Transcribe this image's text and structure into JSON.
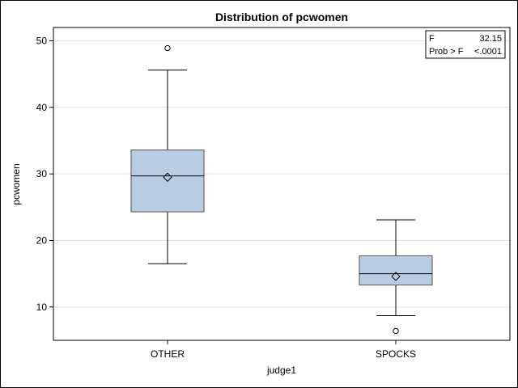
{
  "chart_data": {
    "type": "box",
    "title": "Distribution of pcwomen",
    "xlabel": "judge1",
    "ylabel": "pcwomen",
    "ylim": [
      5,
      52
    ],
    "yticks": [
      10,
      20,
      30,
      40,
      50
    ],
    "grid": true,
    "categories": [
      "OTHER",
      "SPOCKS"
    ],
    "boxes": [
      {
        "category": "OTHER",
        "whisker_low": 16.5,
        "q1": 24.3,
        "median": 29.7,
        "q3": 33.6,
        "whisker_high": 45.6,
        "mean": 29.5,
        "outliers": [
          48.9
        ]
      },
      {
        "category": "SPOCKS",
        "whisker_low": 8.7,
        "q1": 13.3,
        "median": 15.0,
        "q3": 17.7,
        "whisker_high": 23.1,
        "mean": 14.6,
        "outliers": [
          6.4
        ]
      }
    ],
    "inset": {
      "rows": [
        {
          "label": "F",
          "value": "32.15"
        },
        {
          "label": "Prob > F",
          "value": "<.0001"
        }
      ]
    },
    "colors": {
      "box_fill": "#b8cce4",
      "box_stroke": "#555555",
      "grid": "#e2e2e2"
    }
  }
}
